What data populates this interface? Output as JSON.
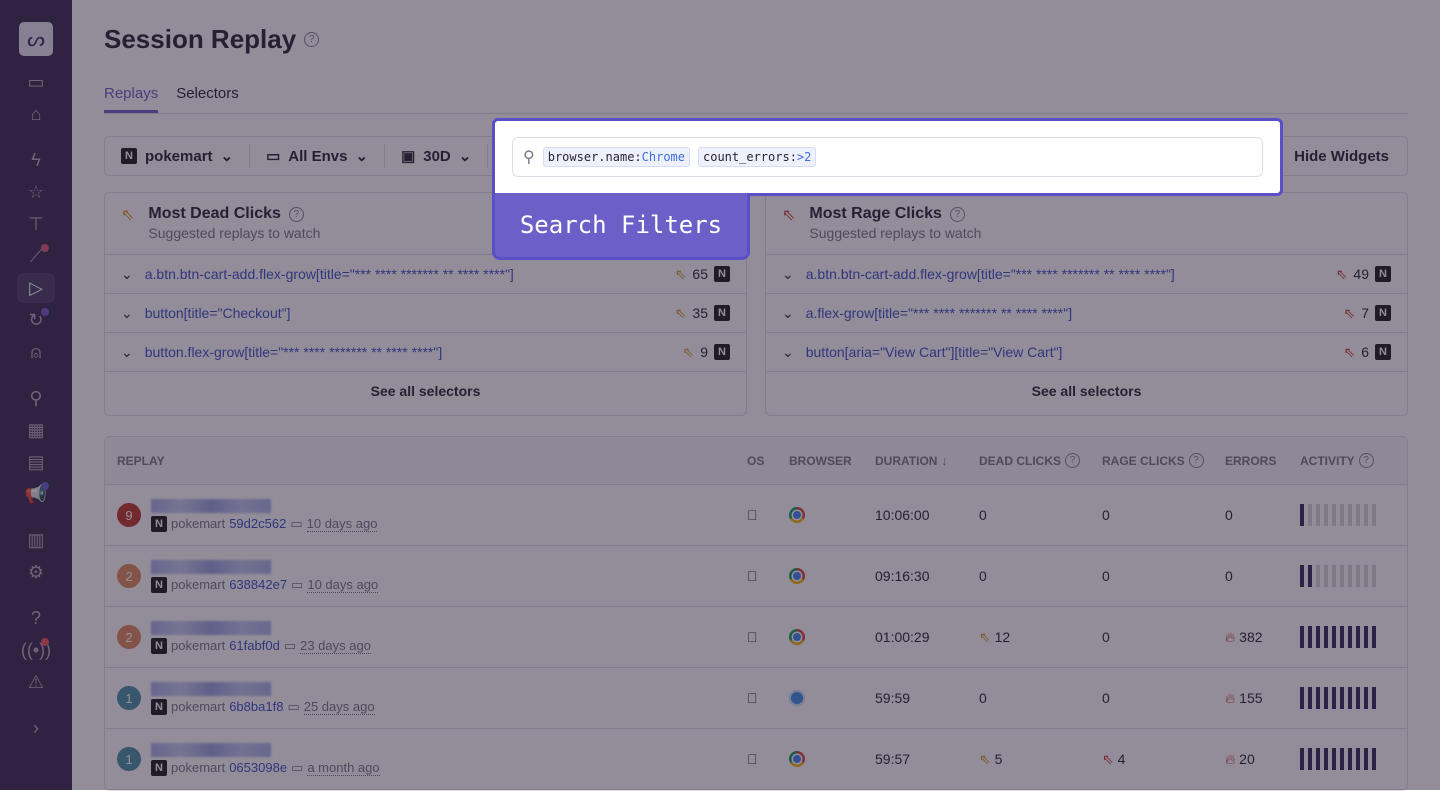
{
  "page": {
    "title": "Session Replay"
  },
  "tabs": [
    {
      "label": "Replays",
      "active": true
    },
    {
      "label": "Selectors",
      "active": false
    }
  ],
  "filters": {
    "project": "pokemart",
    "env": "All Envs",
    "period": "30D",
    "hide_widgets": "Hide Widgets"
  },
  "search": {
    "tokens": [
      {
        "key": "browser.name:",
        "value": "Chrome"
      },
      {
        "key": "count_errors:",
        "value": ">2"
      }
    ]
  },
  "highlight_label": "Search Filters",
  "dead_clicks": {
    "title": "Most Dead Clicks",
    "subtitle": "Suggested replays to watch",
    "rows": [
      {
        "selector": "a.btn.btn-cart-add.flex-grow[title=\"*** **** ******* ** **** ****\"]",
        "count": "65"
      },
      {
        "selector": "button[title=\"Checkout\"]",
        "count": "35"
      },
      {
        "selector": "button.flex-grow[title=\"*** **** ******* ** **** ****\"]",
        "count": "9"
      }
    ],
    "footer": "See all selectors"
  },
  "rage_clicks": {
    "title": "Most Rage Clicks",
    "subtitle": "Suggested replays to watch",
    "rows": [
      {
        "selector": "a.btn.btn-cart-add.flex-grow[title=\"*** **** ******* ** **** ****\"]",
        "count": "49"
      },
      {
        "selector": "a.flex-grow[title=\"*** **** ******* ** **** ****\"]",
        "count": "7"
      },
      {
        "selector": "button[aria=\"View Cart\"][title=\"View Cart\"]",
        "count": "6"
      }
    ],
    "footer": "See all selectors"
  },
  "table": {
    "headers": {
      "replay": "REPLAY",
      "os": "OS",
      "browser": "BROWSER",
      "duration": "DURATION",
      "dead": "DEAD CLICKS",
      "rage": "RAGE CLICKS",
      "errors": "ERRORS",
      "activity": "ACTIVITY"
    },
    "rows": [
      {
        "avatar": "9",
        "avatar_color": "#c0392b",
        "project": "pokemart",
        "id": "59d2c562",
        "ago": "10 days ago",
        "os": "apple",
        "browser": "chrome",
        "duration": "10:06:00",
        "dead": "0",
        "rage": "0",
        "errors": "0",
        "activity": 1
      },
      {
        "avatar": "2",
        "avatar_color": "#e08a5c",
        "project": "pokemart",
        "id": "638842e7",
        "ago": "10 days ago",
        "os": "apple",
        "browser": "chrome",
        "duration": "09:16:30",
        "dead": "0",
        "rage": "0",
        "errors": "0",
        "activity": 2
      },
      {
        "avatar": "2",
        "avatar_color": "#e08a5c",
        "project": "pokemart",
        "id": "61fabf0d",
        "ago": "23 days ago",
        "os": "apple",
        "browser": "chrome",
        "duration": "01:00:29",
        "dead": "12",
        "rage": "0",
        "errors": "382",
        "activity": 10
      },
      {
        "avatar": "1",
        "avatar_color": "#4a90a4",
        "project": "pokemart",
        "id": "6b8ba1f8",
        "ago": "25 days ago",
        "os": "apple",
        "browser": "safari",
        "duration": "59:59",
        "dead": "0",
        "rage": "0",
        "errors": "155",
        "activity": 10
      },
      {
        "avatar": "1",
        "avatar_color": "#4a90a4",
        "project": "pokemart",
        "id": "0653098e",
        "ago": "a month ago",
        "os": "apple",
        "browser": "chrome",
        "duration": "59:57",
        "dead": "5",
        "rage": "4",
        "errors": "20",
        "activity": 10
      }
    ]
  }
}
